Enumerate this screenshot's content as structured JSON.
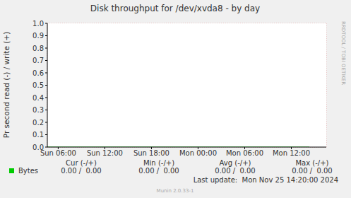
{
  "chart_data": {
    "type": "line",
    "title": "Disk throughput for /dev/xvda8 - by day",
    "y_label": "Pr second read (-) / write (+)",
    "x": [
      4.6,
      38.33
    ],
    "series": [
      {
        "name": "Bytes",
        "color": "#00cc00",
        "values": [
          0,
          0
        ]
      }
    ],
    "xlim": [
      4.6,
      40.5
    ],
    "xticks": [
      {
        "value": 6,
        "label": "Sun 06:00"
      },
      {
        "value": 12,
        "label": "Sun 12:00"
      },
      {
        "value": 18,
        "label": "Sun 18:00"
      },
      {
        "value": 24,
        "label": "Mon 00:00"
      },
      {
        "value": 30,
        "label": "Mon 06:00"
      },
      {
        "value": 36,
        "label": "Mon 12:00"
      }
    ],
    "ylim": [
      0,
      1
    ],
    "yticks": [
      {
        "value": 0,
        "label": "0.0"
      },
      0.1,
      0.2,
      0.3,
      0.4,
      0.5,
      0.6,
      0.7,
      0.8,
      0.9,
      {
        "value": 1,
        "label": "1.0"
      }
    ],
    "grid": true,
    "legend_table": {
      "headers": [
        "Cur (-/+)",
        "Min (-/+)",
        "Avg (-/+)",
        "Max (-/+)"
      ],
      "rows": [
        {
          "name": "Bytes",
          "color": "#00cc00",
          "cells": [
            "0.00 /  0.00",
            "0.00 /  0.00",
            "0.00 /  0.00",
            "0.00 /  0.00"
          ]
        }
      ]
    },
    "last_update": "Last update:  Mon Nov 25 14:20:00 2024",
    "footer": "Munin 2.0.33-1",
    "side_text": "RRDTOOL / TOBI OETIKER"
  }
}
